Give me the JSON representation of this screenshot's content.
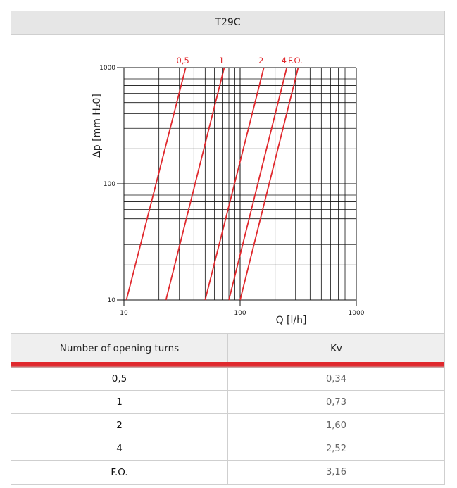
{
  "title": "T29C",
  "table": {
    "headers": [
      "Number of opening turns",
      "Kv"
    ],
    "rows": [
      {
        "turns": "0,5",
        "kv": "0,34"
      },
      {
        "turns": "1",
        "kv": "0,73"
      },
      {
        "turns": "2",
        "kv": "1,60"
      },
      {
        "turns": "4",
        "kv": "2,52"
      },
      {
        "turns": "F.O.",
        "kv": "3,16"
      }
    ]
  },
  "chart_data": {
    "type": "line",
    "xscale": "log",
    "yscale": "log",
    "xlim": [
      10,
      1000
    ],
    "ylim": [
      10,
      1000
    ],
    "xticks": [
      "10",
      "100",
      "1000"
    ],
    "yticks": [
      "10",
      "100",
      "1000"
    ],
    "xlabel": "Q [l/h]",
    "ylabel": "Δp [mm H₂0]",
    "grid": true,
    "line_color": "#e0282d",
    "series": [
      {
        "name": "0,5",
        "points": [
          [
            10.5,
            10
          ],
          [
            34,
            1000
          ]
        ]
      },
      {
        "name": "1",
        "points": [
          [
            23,
            10
          ],
          [
            73,
            1000
          ]
        ]
      },
      {
        "name": "2",
        "points": [
          [
            50,
            10
          ],
          [
            160,
            1000
          ]
        ]
      },
      {
        "name": "4",
        "points": [
          [
            80,
            10
          ],
          [
            252,
            1000
          ]
        ]
      },
      {
        "name": "F.O.",
        "points": [
          [
            100,
            10
          ],
          [
            316,
            1000
          ]
        ]
      }
    ]
  }
}
